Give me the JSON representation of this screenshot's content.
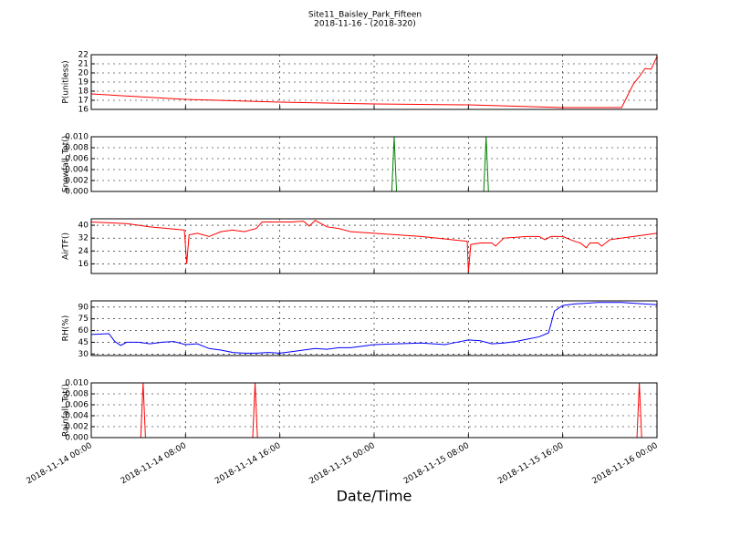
{
  "chart_data": [
    {
      "type": "line",
      "title": "Site11_Baisley_Park_Fifteen",
      "subtitle": "2018-11-16 - (2018-320)",
      "ylabel": "P(unitless)",
      "color": "#ff0000",
      "grid": true,
      "x": [
        "2018-11-14 00:00",
        "2018-11-14 08:00",
        "2018-11-14 16:00",
        "2018-11-15 00:00",
        "2018-11-15 08:00",
        "2018-11-15 16:00",
        "2018-11-15 21:00",
        "2018-11-15 21:30",
        "2018-11-15 22:00",
        "2018-11-15 22:30",
        "2018-11-15 23:00",
        "2018-11-15 23:30",
        "2018-11-16 00:00"
      ],
      "values": [
        17.7,
        17.1,
        16.8,
        16.6,
        16.5,
        16.2,
        16.2,
        17.5,
        18.8,
        19.6,
        20.5,
        20.4,
        21.8
      ],
      "ylim": [
        16,
        22
      ],
      "yticks": [
        16,
        17,
        18,
        19,
        20,
        21,
        22
      ],
      "xlim": [
        "2018-11-14 00:00",
        "2018-11-16 00:00"
      ],
      "xticks": [
        "2018-11-14 00:00",
        "2018-11-14 08:00",
        "2018-11-14 16:00",
        "2018-11-15 00:00",
        "2018-11-15 08:00",
        "2018-11-15 16:00",
        "2018-11-16 00:00"
      ]
    },
    {
      "type": "line",
      "ylabel": "Snowfall_Tot()",
      "color": "#008000",
      "grid": true,
      "x": [
        "2018-11-14 00:00",
        "2018-11-15 01:30",
        "2018-11-15 01:42",
        "2018-11-15 01:54",
        "2018-11-15 09:18",
        "2018-11-15 09:30",
        "2018-11-15 09:42",
        "2018-11-16 00:00"
      ],
      "values": [
        0,
        0,
        0.01,
        0,
        0,
        0.01,
        0,
        0
      ],
      "ylim": [
        0,
        0.01
      ],
      "yticks": [
        {
          "value": 0,
          "label": "0.000"
        },
        {
          "value": 0.002,
          "label": "0.002"
        },
        {
          "value": 0.004,
          "label": "0.004"
        },
        {
          "value": 0.006,
          "label": "0.006"
        },
        {
          "value": 0.008,
          "label": "0.008"
        },
        {
          "value": 0.01,
          "label": "0.010"
        }
      ],
      "xlim": [
        "2018-11-14 00:00",
        "2018-11-16 00:00"
      ],
      "xticks": [
        "2018-11-14 00:00",
        "2018-11-14 08:00",
        "2018-11-14 16:00",
        "2018-11-15 00:00",
        "2018-11-15 08:00",
        "2018-11-15 16:00",
        "2018-11-16 00:00"
      ]
    },
    {
      "type": "line",
      "ylabel": "AirTF()",
      "color": "#ff0000",
      "grid": true,
      "x": [
        "2018-11-14 00:00",
        "2018-11-14 03:00",
        "2018-11-14 05:00",
        "2018-11-14 07:54",
        "2018-11-14 08:06",
        "2018-11-14 08:18",
        "2018-11-14 09:00",
        "2018-11-14 10:00",
        "2018-11-14 11:00",
        "2018-11-14 12:00",
        "2018-11-14 13:00",
        "2018-11-14 14:00",
        "2018-11-14 14:30",
        "2018-11-14 17:00",
        "2018-11-14 18:00",
        "2018-11-14 18:30",
        "2018-11-14 19:00",
        "2018-11-14 20:00",
        "2018-11-14 21:00",
        "2018-11-14 22:00",
        "2018-11-15 00:00",
        "2018-11-15 04:00",
        "2018-11-15 07:54",
        "2018-11-15 08:00",
        "2018-11-15 08:12",
        "2018-11-15 09:00",
        "2018-11-15 10:00",
        "2018-11-15 10:18",
        "2018-11-15 11:00",
        "2018-11-15 13:00",
        "2018-11-15 14:00",
        "2018-11-15 14:30",
        "2018-11-15 15:00",
        "2018-11-15 16:00",
        "2018-11-15 17:00",
        "2018-11-15 17:30",
        "2018-11-15 18:00",
        "2018-11-15 18:18",
        "2018-11-15 19:00",
        "2018-11-15 19:18",
        "2018-11-15 20:00",
        "2018-11-15 21:00",
        "2018-11-15 22:00",
        "2018-11-16 00:00"
      ],
      "values": [
        42,
        41,
        39,
        37,
        16,
        34,
        35,
        33,
        36,
        37,
        36,
        38,
        42,
        42,
        42.5,
        39.5,
        43,
        39,
        38,
        36,
        35,
        33,
        30,
        11,
        28,
        29,
        29,
        27,
        32,
        33,
        33,
        31,
        33,
        33,
        30,
        29,
        26,
        29,
        29,
        27,
        31,
        32,
        33,
        35
      ],
      "ylim": [
        10,
        44
      ],
      "yticks": [
        16,
        24,
        32,
        40
      ],
      "xlim": [
        "2018-11-14 00:00",
        "2018-11-16 00:00"
      ],
      "xticks": [
        "2018-11-14 00:00",
        "2018-11-14 08:00",
        "2018-11-14 16:00",
        "2018-11-15 00:00",
        "2018-11-15 08:00",
        "2018-11-15 16:00",
        "2018-11-16 00:00"
      ]
    },
    {
      "type": "line",
      "ylabel": "RH(%)",
      "color": "#0000ff",
      "grid": true,
      "x": [
        "2018-11-14 00:00",
        "2018-11-14 01:30",
        "2018-11-14 02:00",
        "2018-11-14 02:30",
        "2018-11-14 03:00",
        "2018-11-14 04:00",
        "2018-11-14 05:00",
        "2018-11-14 06:00",
        "2018-11-14 07:00",
        "2018-11-14 08:00",
        "2018-11-14 09:00",
        "2018-11-14 10:00",
        "2018-11-14 11:00",
        "2018-11-14 12:00",
        "2018-11-14 13:00",
        "2018-11-14 14:00",
        "2018-11-14 15:00",
        "2018-11-14 16:00",
        "2018-11-14 17:00",
        "2018-11-14 18:00",
        "2018-11-14 19:00",
        "2018-11-14 20:00",
        "2018-11-14 21:00",
        "2018-11-14 22:00",
        "2018-11-14 23:00",
        "2018-11-15 00:00",
        "2018-11-15 02:00",
        "2018-11-15 04:00",
        "2018-11-15 05:00",
        "2018-11-15 06:00",
        "2018-11-15 07:00",
        "2018-11-15 08:00",
        "2018-11-15 09:00",
        "2018-11-15 10:00",
        "2018-11-15 11:00",
        "2018-11-15 12:00",
        "2018-11-15 13:00",
        "2018-11-15 14:00",
        "2018-11-15 14:48",
        "2018-11-15 15:18",
        "2018-11-15 16:00",
        "2018-11-15 17:00",
        "2018-11-15 18:00",
        "2018-11-15 19:00",
        "2018-11-15 21:00",
        "2018-11-15 22:00",
        "2018-11-16 00:00"
      ],
      "values": [
        55,
        56,
        46,
        41,
        45,
        45,
        43,
        45,
        46,
        42,
        43,
        37,
        35,
        32,
        31,
        31,
        32,
        31,
        33,
        35,
        37,
        36,
        38,
        38,
        40,
        42,
        43,
        44,
        43,
        42,
        45,
        48,
        47,
        43,
        44,
        46,
        49,
        52,
        57,
        85,
        92,
        94,
        95,
        96,
        96,
        95,
        93
      ],
      "ylim": [
        28,
        98
      ],
      "yticks": [
        30,
        45,
        60,
        75,
        90
      ],
      "xlim": [
        "2018-11-14 00:00",
        "2018-11-16 00:00"
      ],
      "xticks": [
        "2018-11-14 00:00",
        "2018-11-14 08:00",
        "2018-11-14 16:00",
        "2018-11-15 00:00",
        "2018-11-15 08:00",
        "2018-11-15 16:00",
        "2018-11-16 00:00"
      ]
    },
    {
      "type": "line",
      "ylabel": "Rainfall_Tot()",
      "xlabel": "Date/Time",
      "color": "#ff0000",
      "grid": true,
      "x": [
        "2018-11-14 00:00",
        "2018-11-14 04:12",
        "2018-11-14 04:24",
        "2018-11-14 04:36",
        "2018-11-14 13:42",
        "2018-11-14 13:54",
        "2018-11-14 14:06",
        "2018-11-15 22:18",
        "2018-11-15 22:30",
        "2018-11-15 22:42",
        "2018-11-16 00:00"
      ],
      "values": [
        0,
        0,
        0.01,
        0,
        0,
        0.01,
        0,
        0,
        0.01,
        0,
        0
      ],
      "ylim": [
        0,
        0.01
      ],
      "yticks": [
        {
          "value": 0,
          "label": "0.000"
        },
        {
          "value": 0.002,
          "label": "0.002"
        },
        {
          "value": 0.004,
          "label": "0.004"
        },
        {
          "value": 0.006,
          "label": "0.006"
        },
        {
          "value": 0.008,
          "label": "0.008"
        },
        {
          "value": 0.01,
          "label": "0.010"
        }
      ],
      "xlim": [
        "2018-11-14 00:00",
        "2018-11-16 00:00"
      ],
      "xticks": [
        "2018-11-14 00:00",
        "2018-11-14 08:00",
        "2018-11-14 16:00",
        "2018-11-15 00:00",
        "2018-11-15 08:00",
        "2018-11-15 16:00",
        "2018-11-16 00:00"
      ]
    }
  ]
}
